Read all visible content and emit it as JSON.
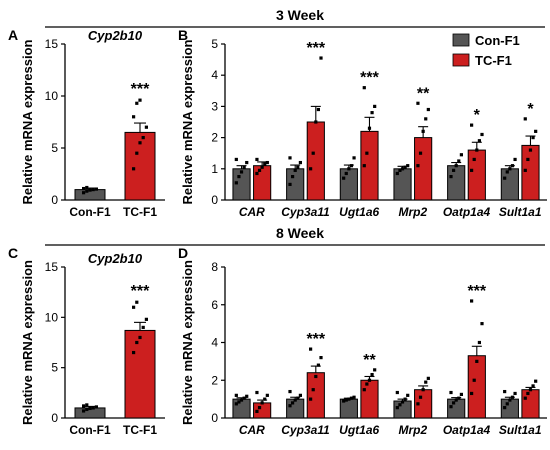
{
  "figure": {
    "header_top": "3 Week",
    "header_bottom": "8 Week",
    "legend": {
      "placement": "top-right",
      "items": [
        {
          "name": "Con-F1",
          "color": "#555555"
        },
        {
          "name": "TC-F1",
          "color": "#cc1f1f"
        }
      ]
    }
  },
  "chart_data": [
    {
      "panel": "A",
      "type": "bar",
      "title": "Cyp2b10",
      "ylabel": "Relative mRNA expression",
      "ylim": [
        0,
        15
      ],
      "yticks": [
        0,
        5,
        10,
        15
      ],
      "categories": [
        "Con-F1",
        "TC-F1"
      ],
      "values": [
        1.0,
        6.5
      ],
      "errors": [
        0.15,
        0.9
      ],
      "colors": [
        "#555555",
        "#cc1f1f"
      ],
      "significance": [
        "",
        "***"
      ],
      "points": [
        [
          0.7,
          0.85,
          0.95,
          1.0,
          1.05,
          1.1,
          1.2
        ],
        [
          3.0,
          4.5,
          5.5,
          6.0,
          7.0,
          8.0,
          9.3,
          9.6
        ]
      ]
    },
    {
      "panel": "B",
      "type": "bar",
      "ylabel": "Relative mRNA expression",
      "ylim": [
        0,
        5
      ],
      "yticks": [
        0,
        1,
        2,
        3,
        4,
        5
      ],
      "categories": [
        "CAR",
        "Cyp3a11",
        "Ugt1a6",
        "Mrp2",
        "Oatp1a4",
        "Sult1a1"
      ],
      "series": [
        {
          "name": "Con-F1",
          "color": "#555555",
          "values": [
            1.0,
            1.0,
            1.0,
            1.0,
            1.1,
            1.0
          ],
          "errors": [
            0.1,
            0.12,
            0.12,
            0.08,
            0.1,
            0.1
          ],
          "points": [
            [
              0.55,
              0.75,
              0.9,
              1.05,
              1.2,
              1.3
            ],
            [
              0.5,
              0.75,
              0.95,
              1.05,
              1.2,
              1.35
            ],
            [
              0.7,
              0.85,
              1.0,
              1.1,
              1.35
            ],
            [
              0.85,
              0.95,
              1.0,
              1.05,
              1.1
            ],
            [
              0.75,
              0.95,
              1.1,
              1.25,
              1.45
            ],
            [
              0.7,
              0.9,
              1.0,
              1.1,
              1.3
            ]
          ]
        },
        {
          "name": "TC-F1",
          "color": "#cc1f1f",
          "values": [
            1.1,
            2.5,
            2.2,
            2.0,
            1.6,
            1.75
          ],
          "errors": [
            0.12,
            0.5,
            0.45,
            0.35,
            0.25,
            0.3
          ],
          "points": [
            [
              0.85,
              0.95,
              1.05,
              1.15,
              1.2,
              1.3
            ],
            [
              1.0,
              1.5,
              2.5,
              2.9,
              4.55
            ],
            [
              1.1,
              1.5,
              2.3,
              2.8,
              3.0,
              3.6
            ],
            [
              1.1,
              1.5,
              2.2,
              2.6,
              2.9,
              3.1
            ],
            [
              0.95,
              1.3,
              1.6,
              1.9,
              2.1,
              2.4
            ],
            [
              0.95,
              1.3,
              1.6,
              2.0,
              2.2,
              2.6
            ]
          ]
        }
      ],
      "significance": [
        "",
        "***",
        "***",
        "**",
        "*",
        "*"
      ]
    },
    {
      "panel": "C",
      "type": "bar",
      "title": "Cyp2b10",
      "ylabel": "Relative mRNA expression",
      "ylim": [
        0,
        15
      ],
      "yticks": [
        0,
        5,
        10,
        15
      ],
      "categories": [
        "Con-F1",
        "TC-F1"
      ],
      "values": [
        1.0,
        8.7
      ],
      "errors": [
        0.15,
        0.8
      ],
      "colors": [
        "#555555",
        "#cc1f1f"
      ],
      "significance": [
        "",
        "***"
      ],
      "points": [
        [
          0.7,
          0.85,
          0.95,
          1.0,
          1.1,
          1.2,
          1.3
        ],
        [
          6.5,
          7.5,
          8.0,
          9.0,
          9.8,
          11.0,
          11.5
        ]
      ]
    },
    {
      "panel": "D",
      "type": "bar",
      "ylabel": "Relative mRNA expression",
      "ylim": [
        0,
        8
      ],
      "yticks": [
        0,
        2,
        4,
        6,
        8
      ],
      "categories": [
        "CAR",
        "Cyp3a11",
        "Ugt1a6",
        "Mrp2",
        "Oatp1a4",
        "Sult1a1"
      ],
      "series": [
        {
          "name": "Con-F1",
          "color": "#555555",
          "values": [
            1.0,
            1.0,
            1.0,
            0.9,
            1.0,
            1.0
          ],
          "errors": [
            0.07,
            0.1,
            0.05,
            0.1,
            0.08,
            0.1
          ],
          "points": [
            [
              0.75,
              0.85,
              0.95,
              1.05,
              1.15,
              1.2
            ],
            [
              0.65,
              0.8,
              0.95,
              1.05,
              1.2,
              1.4
            ],
            [
              0.9,
              0.95,
              1.0,
              1.05,
              1.1
            ],
            [
              0.55,
              0.7,
              0.85,
              1.0,
              1.2,
              1.35
            ],
            [
              0.6,
              0.8,
              0.95,
              1.05,
              1.25,
              1.35
            ],
            [
              0.55,
              0.75,
              0.95,
              1.1,
              1.3,
              1.4
            ]
          ]
        },
        {
          "name": "TC-F1",
          "color": "#cc1f1f",
          "values": [
            0.8,
            2.4,
            2.0,
            1.5,
            3.3,
            1.5
          ],
          "errors": [
            0.15,
            0.35,
            0.2,
            0.2,
            0.5,
            0.12
          ],
          "points": [
            [
              0.35,
              0.55,
              0.8,
              1.0,
              1.2,
              1.35
            ],
            [
              1.0,
              1.5,
              2.2,
              2.8,
              3.2,
              3.65
            ],
            [
              1.5,
              1.8,
              2.0,
              2.3,
              2.55
            ],
            [
              0.75,
              1.1,
              1.5,
              1.9,
              2.1
            ],
            [
              1.3,
              2.0,
              3.0,
              4.0,
              5.0,
              6.2
            ],
            [
              1.05,
              1.3,
              1.5,
              1.7,
              1.95
            ]
          ]
        }
      ],
      "significance": [
        "",
        "***",
        "**",
        "",
        "***",
        ""
      ]
    }
  ]
}
